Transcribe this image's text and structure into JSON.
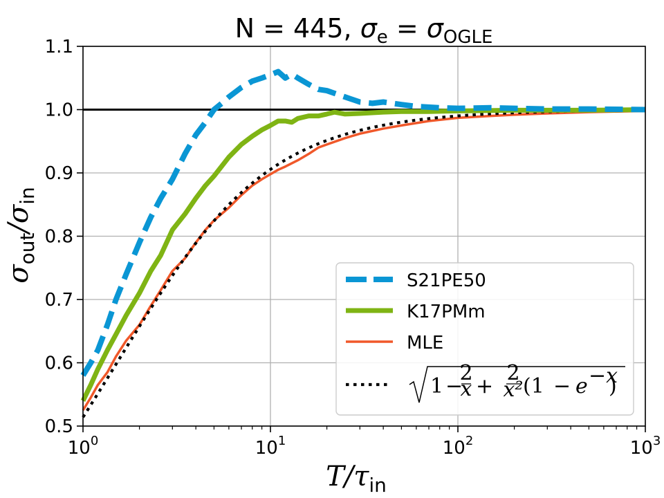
{
  "chart_data": {
    "type": "line",
    "title": {
      "prefix": "N = 445, ",
      "sym1": "σ",
      "sub1": "e",
      "eq": " = ",
      "sym2": "σ",
      "sub2": "OGLE"
    },
    "xlabel": {
      "main": "T/τ",
      "sub": "in"
    },
    "ylabel": {
      "main1": "σ",
      "sub1": "out",
      "slash": "/σ",
      "sub2": "in"
    },
    "xscale": "log",
    "xlim": [
      1,
      1000
    ],
    "ylim": [
      0.5,
      1.1
    ],
    "grid": true,
    "x_ticks": [
      {
        "base": "10",
        "exp": "0"
      },
      {
        "base": "10",
        "exp": "1"
      },
      {
        "base": "10",
        "exp": "2"
      },
      {
        "base": "10",
        "exp": "3"
      }
    ],
    "y_ticks": [
      "0.5",
      "0.6",
      "0.7",
      "0.8",
      "0.9",
      "1.0",
      "1.1"
    ],
    "reference_line": {
      "y": 1.0,
      "color": "#000000"
    },
    "legend_position": "lower-right",
    "series": [
      {
        "name": "S21PE50",
        "color": "#0a96d4",
        "style": "dashed",
        "x": [
          1,
          1.1,
          1.2,
          1.35,
          1.5,
          1.7,
          2,
          2.3,
          2.6,
          3,
          3.5,
          4,
          4.5,
          5,
          5.5,
          6,
          7,
          8,
          9,
          10,
          11,
          12,
          13,
          14,
          16,
          18,
          20,
          25,
          30,
          35,
          40,
          50,
          60,
          80,
          100,
          150,
          200,
          300,
          500,
          1000
        ],
        "values": [
          0.58,
          0.6,
          0.62,
          0.66,
          0.7,
          0.74,
          0.79,
          0.83,
          0.86,
          0.89,
          0.93,
          0.96,
          0.98,
          1.0,
          1.01,
          1.02,
          1.035,
          1.045,
          1.05,
          1.055,
          1.06,
          1.05,
          1.056,
          1.05,
          1.04,
          1.032,
          1.03,
          1.02,
          1.012,
          1.01,
          1.012,
          1.008,
          1.005,
          1.003,
          1.002,
          1.003,
          1.002,
          1.001,
          1.001,
          1.0
        ]
      },
      {
        "name": "K17PMm",
        "color": "#7fb414",
        "style": "solid",
        "x": [
          1,
          1.1,
          1.2,
          1.35,
          1.5,
          1.7,
          2,
          2.3,
          2.6,
          3,
          3.5,
          4,
          4.5,
          5,
          6,
          7,
          8,
          9,
          10,
          11,
          12,
          13,
          14,
          16,
          18,
          20,
          22,
          25,
          30,
          40,
          50,
          70,
          100,
          200,
          500,
          1000
        ],
        "values": [
          0.54,
          0.565,
          0.59,
          0.62,
          0.645,
          0.675,
          0.71,
          0.745,
          0.77,
          0.81,
          0.835,
          0.86,
          0.88,
          0.895,
          0.925,
          0.945,
          0.958,
          0.968,
          0.975,
          0.982,
          0.982,
          0.98,
          0.986,
          0.99,
          0.99,
          0.993,
          0.996,
          0.993,
          0.994,
          0.996,
          0.997,
          0.997,
          0.998,
          0.999,
          0.999,
          1.0
        ]
      },
      {
        "name": "MLE",
        "color": "#f0582a",
        "style": "solid",
        "x": [
          1,
          1.1,
          1.2,
          1.35,
          1.5,
          1.7,
          2,
          2.3,
          2.6,
          3,
          3.5,
          4,
          4.5,
          5,
          6,
          7,
          8,
          9,
          10,
          11,
          12,
          14,
          16,
          18,
          20,
          25,
          30,
          40,
          50,
          70,
          100,
          150,
          200,
          300,
          500,
          1000
        ],
        "values": [
          0.525,
          0.545,
          0.565,
          0.585,
          0.61,
          0.635,
          0.66,
          0.69,
          0.715,
          0.745,
          0.765,
          0.79,
          0.81,
          0.825,
          0.845,
          0.865,
          0.88,
          0.89,
          0.898,
          0.905,
          0.91,
          0.92,
          0.93,
          0.94,
          0.945,
          0.955,
          0.962,
          0.97,
          0.975,
          0.982,
          0.987,
          0.99,
          0.992,
          0.994,
          0.996,
          0.998
        ]
      },
      {
        "name": "sqrt(1 - 2/x + 2/x^2 (1 - e^-x))",
        "color": "#000000",
        "style": "dotted",
        "formula": "analytic",
        "formula_parts": {
          "one": "1",
          "minus": "−",
          "two": "2",
          "x": "x",
          "plus": "+",
          "x2": "x²",
          "paren_open": "(1",
          "e": "e",
          "exp": "−x",
          "paren_close": ")"
        }
      }
    ]
  }
}
